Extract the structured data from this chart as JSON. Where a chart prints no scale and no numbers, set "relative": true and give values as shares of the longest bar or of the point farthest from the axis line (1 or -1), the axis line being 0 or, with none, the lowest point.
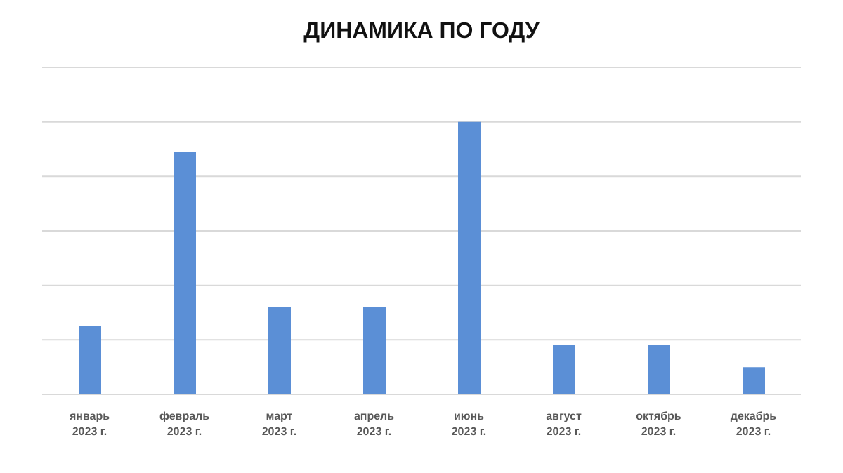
{
  "chart_data": {
    "type": "bar",
    "title": "ДИНАМИКА ПО ГОДУ",
    "categories": [
      "январь 2023 г.",
      "февраль 2023 г.",
      "март 2023 г.",
      "апрель 2023 г.",
      "июнь 2023 г.",
      "август 2023 г.",
      "октябрь 2023 г.",
      "декабрь 2023 г."
    ],
    "values": [
      0.25,
      0.89,
      0.32,
      0.32,
      1,
      0.18,
      0.18,
      0.1
    ],
    "color": "#5b8fd6",
    "relative": true,
    "grid": "y",
    "legend": false
  }
}
